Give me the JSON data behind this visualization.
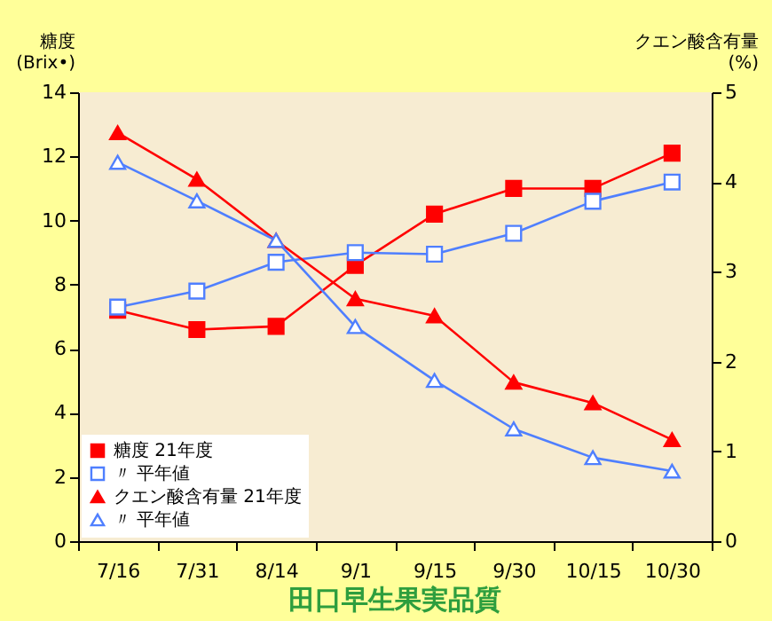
{
  "chart_data": {
    "type": "line",
    "title": "田口早生果実品質",
    "ylabel": "糖度\n(Brix•)",
    "y2label": "クエン酸含有量\n(%)",
    "categories": [
      "7/16",
      "7/31",
      "8/14",
      "9/1",
      "9/15",
      "9/30",
      "10/15",
      "10/30"
    ],
    "series": [
      {
        "name": "糖度 21年度",
        "color": "#ff0000",
        "marker": "square",
        "values": [
          7.2,
          6.6,
          6.7,
          8.6,
          10.2,
          11.0,
          11.0,
          12.1
        ]
      },
      {
        "name": "〃 平年値",
        "color": "#4f7fff",
        "marker": "square",
        "values": [
          7.3,
          7.8,
          8.7,
          9.0,
          8.95,
          9.6,
          10.6,
          11.2
        ]
      },
      {
        "name": "クエン酸含有量 21年度",
        "color": "#ff0000",
        "marker": "triangle",
        "axis": "y2",
        "values": [
          4.55,
          4.03,
          3.35,
          2.7,
          2.51,
          1.77,
          1.54,
          1.13
        ]
      },
      {
        "name": "〃       平年値",
        "color": "#4f7fff",
        "marker": "triangle",
        "axis": "y2",
        "values": [
          4.22,
          3.79,
          3.35,
          2.39,
          1.79,
          1.25,
          0.93,
          0.78
        ]
      }
    ],
    "ylim": [
      0,
      14
    ],
    "yticks": [
      0,
      2,
      4,
      6,
      8,
      10,
      12,
      14
    ],
    "y2lim": [
      0,
      5
    ],
    "y2ticks": [
      0,
      1,
      2,
      3,
      4,
      5
    ],
    "grid": false,
    "legend": "bottom left"
  }
}
